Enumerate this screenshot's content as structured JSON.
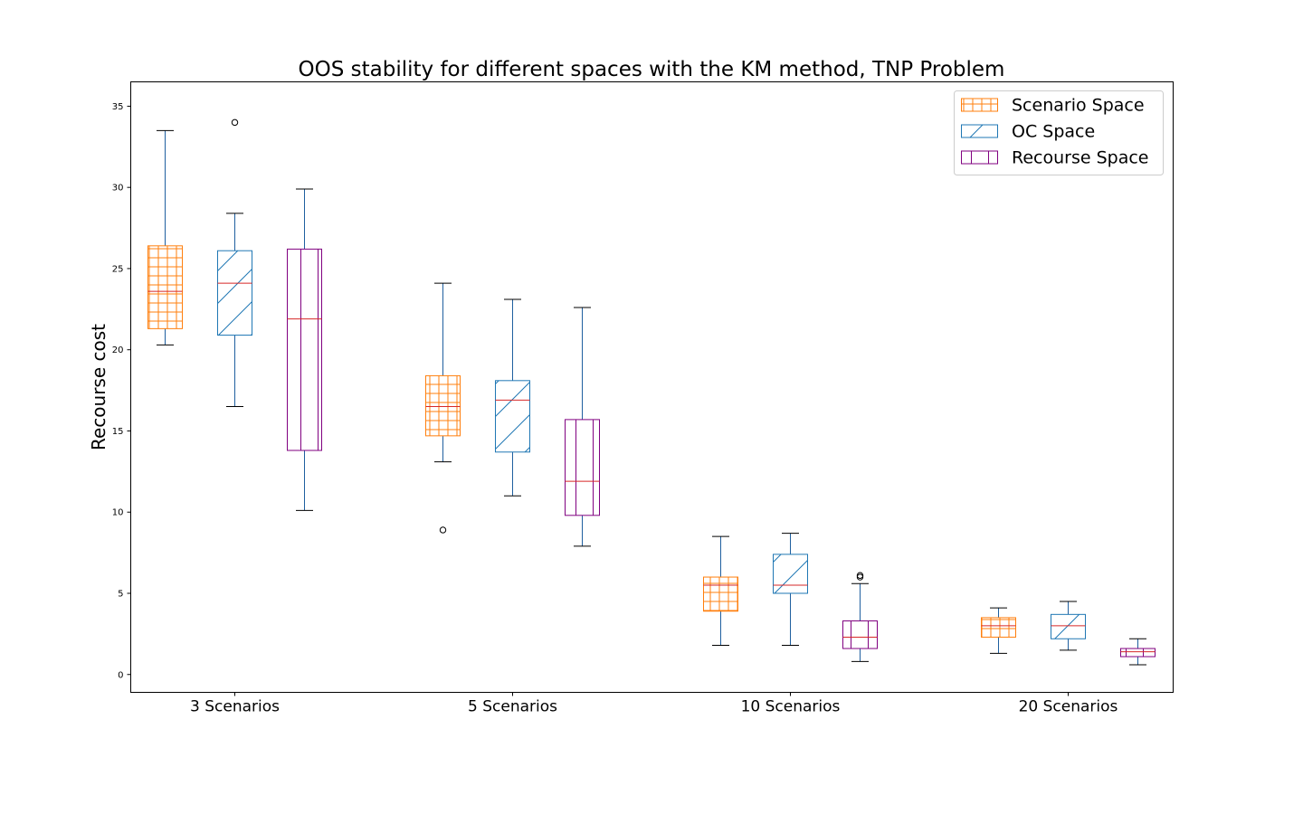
{
  "chart_data": {
    "type": "box",
    "title": "OOS stability for different spaces with the KM method, TNP Problem",
    "xlabel": "",
    "ylabel": "Recourse cost",
    "ylim": [
      -1.1,
      36.5
    ],
    "yticks": [
      0,
      5,
      10,
      15,
      20,
      25,
      30,
      35
    ],
    "categories": [
      "3 Scenarios",
      "5 Scenarios",
      "10 Scenarios",
      "20 Scenarios"
    ],
    "legend_position": "top-right",
    "grid": false,
    "median_color": "#d62728",
    "whisker_color": "#1f5f9f",
    "series": [
      {
        "name": "Scenario Space",
        "color": "#ff7f0e",
        "hatch": "grid",
        "boxes": [
          {
            "whislo": 20.3,
            "q1": 21.3,
            "med": 23.6,
            "q3": 26.4,
            "whishi": 33.5,
            "fliers": []
          },
          {
            "whislo": 13.1,
            "q1": 14.7,
            "med": 16.5,
            "q3": 18.4,
            "whishi": 24.1,
            "fliers": [
              8.9
            ]
          },
          {
            "whislo": 1.8,
            "q1": 3.9,
            "med": 5.5,
            "q3": 6.0,
            "whishi": 8.5,
            "fliers": []
          },
          {
            "whislo": 1.3,
            "q1": 2.3,
            "med": 3.0,
            "q3": 3.5,
            "whishi": 4.1,
            "fliers": []
          }
        ]
      },
      {
        "name": "OC Space",
        "color": "#1f77b4",
        "hatch": "diagonal",
        "boxes": [
          {
            "whislo": 16.5,
            "q1": 20.9,
            "med": 24.1,
            "q3": 26.1,
            "whishi": 28.4,
            "fliers": [
              34.0
            ]
          },
          {
            "whislo": 11.0,
            "q1": 13.7,
            "med": 16.9,
            "q3": 18.1,
            "whishi": 23.1,
            "fliers": []
          },
          {
            "whislo": 1.8,
            "q1": 5.0,
            "med": 5.5,
            "q3": 7.4,
            "whishi": 8.7,
            "fliers": []
          },
          {
            "whislo": 1.5,
            "q1": 2.2,
            "med": 3.0,
            "q3": 3.7,
            "whishi": 4.5,
            "fliers": []
          }
        ]
      },
      {
        "name": "Recourse Space",
        "color": "#800080",
        "hatch": "vertical",
        "boxes": [
          {
            "whislo": 10.1,
            "q1": 13.8,
            "med": 21.9,
            "q3": 26.2,
            "whishi": 29.9,
            "fliers": []
          },
          {
            "whislo": 7.9,
            "q1": 9.8,
            "med": 11.9,
            "q3": 15.7,
            "whishi": 22.6,
            "fliers": []
          },
          {
            "whislo": 0.8,
            "q1": 1.6,
            "med": 2.3,
            "q3": 3.3,
            "whishi": 5.6,
            "fliers": [
              6.0,
              6.1
            ]
          },
          {
            "whislo": 0.6,
            "q1": 1.1,
            "med": 1.4,
            "q3": 1.6,
            "whishi": 2.2,
            "fliers": []
          }
        ]
      }
    ]
  }
}
